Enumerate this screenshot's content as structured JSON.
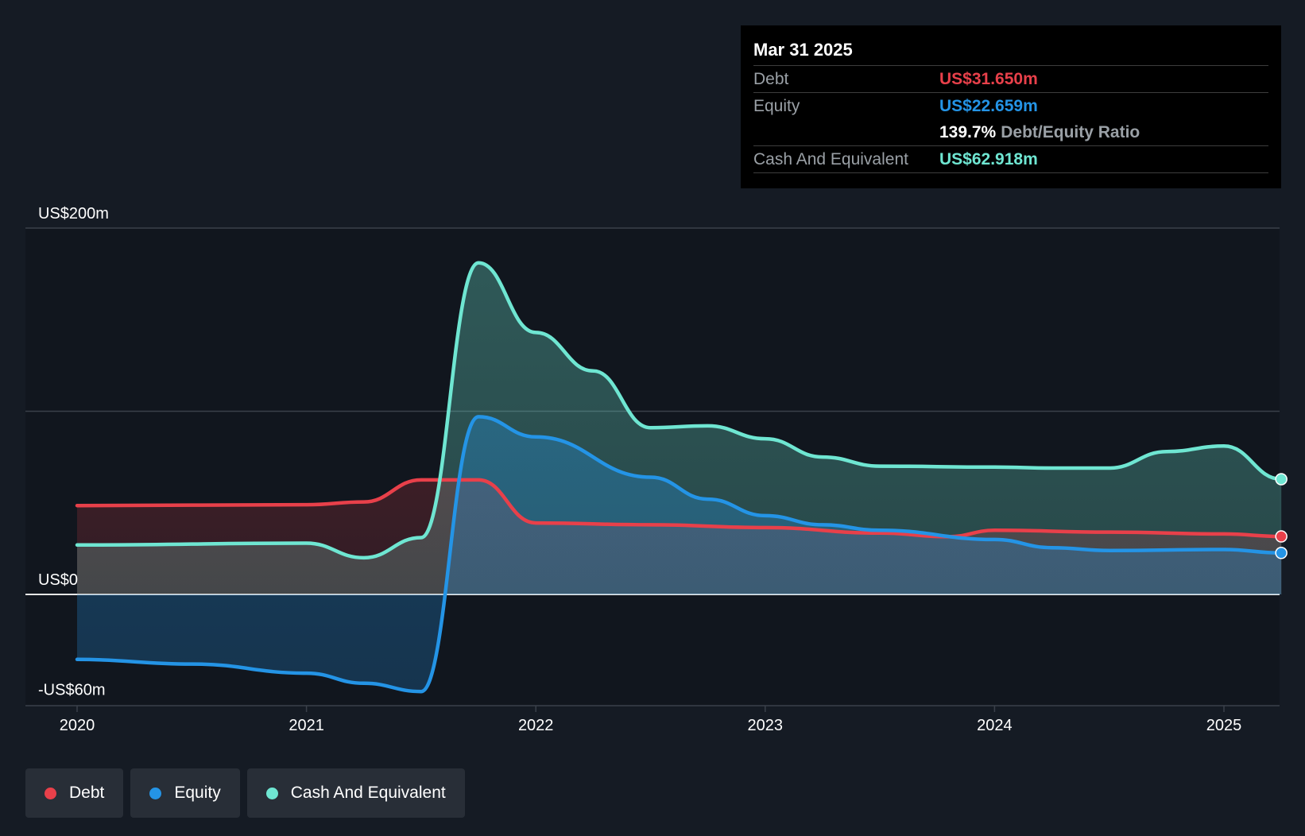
{
  "colors": {
    "debt": "#e8404a",
    "equity": "#2494e6",
    "cash": "#6fe6d2",
    "background": "#151b24",
    "plot_background": "#11161e"
  },
  "tooltip": {
    "date": "Mar 31 2025",
    "debt_label": "Debt",
    "debt_value": "US$31.650m",
    "equity_label": "Equity",
    "equity_value": "US$22.659m",
    "ratio_value": "139.7%",
    "ratio_label": "Debt/Equity Ratio",
    "cash_label": "Cash And Equivalent",
    "cash_value": "US$62.918m"
  },
  "legend": [
    {
      "label": "Debt",
      "color_key": "debt"
    },
    {
      "label": "Equity",
      "color_key": "equity"
    },
    {
      "label": "Cash And Equivalent",
      "color_key": "cash"
    }
  ],
  "chart_data": {
    "type": "area",
    "title": "",
    "xlabel": "",
    "ylabel": "",
    "ylim": [
      -60,
      200
    ],
    "xlim": [
      2019.78,
      2025.25
    ],
    "y_tick_labels": [
      {
        "value": 200,
        "label": "US$200m"
      },
      {
        "value": 0,
        "label": "US$0"
      },
      {
        "value": -60,
        "label": "-US$60m"
      }
    ],
    "gridlines": [
      200,
      100,
      0
    ],
    "x_ticks": [
      {
        "value": 2020,
        "label": "2020"
      },
      {
        "value": 2021,
        "label": "2021"
      },
      {
        "value": 2022,
        "label": "2022"
      },
      {
        "value": 2023,
        "label": "2023"
      },
      {
        "value": 2024,
        "label": "2024"
      },
      {
        "value": 2025,
        "label": "2025"
      }
    ],
    "series": [
      {
        "name": "Debt",
        "color_key": "debt",
        "points": [
          [
            2020.0,
            48.5
          ],
          [
            2021.0,
            49.0
          ],
          [
            2021.25,
            50.5
          ],
          [
            2021.5,
            62.5
          ],
          [
            2021.75,
            62.5
          ],
          [
            2022.0,
            39.0
          ],
          [
            2022.5,
            38.0
          ],
          [
            2023.0,
            36.5
          ],
          [
            2023.5,
            33.5
          ],
          [
            2023.8,
            31.5
          ],
          [
            2024.0,
            35.0
          ],
          [
            2024.5,
            34.0
          ],
          [
            2025.0,
            33.0
          ],
          [
            2025.25,
            31.65
          ]
        ]
      },
      {
        "name": "Equity",
        "color_key": "equity",
        "points": [
          [
            2020.0,
            -35.5
          ],
          [
            2020.5,
            -38.0
          ],
          [
            2021.0,
            -43.0
          ],
          [
            2021.25,
            -48.5
          ],
          [
            2021.5,
            -53.0
          ],
          [
            2021.75,
            97.0
          ],
          [
            2022.0,
            86.0
          ],
          [
            2022.5,
            64.0
          ],
          [
            2022.75,
            52.0
          ],
          [
            2023.0,
            43.0
          ],
          [
            2023.25,
            38.0
          ],
          [
            2023.5,
            35.0
          ],
          [
            2024.0,
            30.0
          ],
          [
            2024.25,
            25.5
          ],
          [
            2024.5,
            24.0
          ],
          [
            2025.0,
            24.5
          ],
          [
            2025.25,
            22.659
          ]
        ]
      },
      {
        "name": "Cash And Equivalent",
        "color_key": "cash",
        "points": [
          [
            2020.0,
            27.0
          ],
          [
            2021.0,
            28.0
          ],
          [
            2021.25,
            20.0
          ],
          [
            2021.5,
            31.0
          ],
          [
            2021.75,
            181.0
          ],
          [
            2022.0,
            143.0
          ],
          [
            2022.25,
            122.0
          ],
          [
            2022.5,
            91.0
          ],
          [
            2022.75,
            92.0
          ],
          [
            2023.0,
            85.0
          ],
          [
            2023.25,
            75.0
          ],
          [
            2023.5,
            70.0
          ],
          [
            2024.0,
            69.5
          ],
          [
            2024.25,
            69.0
          ],
          [
            2024.5,
            69.0
          ],
          [
            2024.75,
            78.0
          ],
          [
            2025.0,
            81.0
          ],
          [
            2025.25,
            62.918
          ]
        ]
      }
    ]
  }
}
